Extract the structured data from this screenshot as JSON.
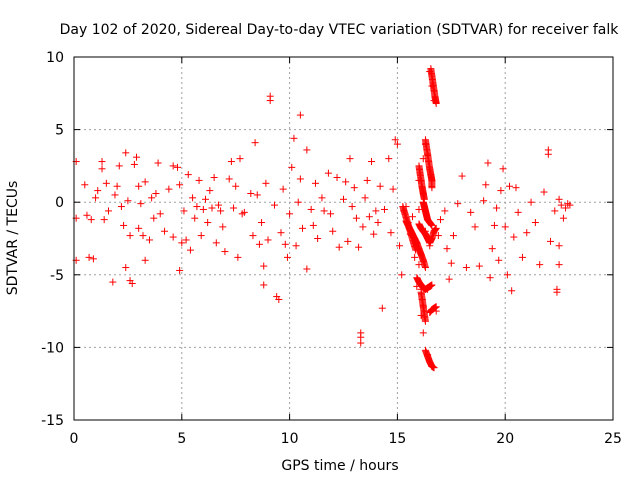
{
  "chart_data": {
    "type": "scatter",
    "title": "Day 102 of 2020, Sidereal Day-to-day VTEC variation (SDTVAR) for receiver falk",
    "xlabel": "GPS time / hours",
    "ylabel": "SDTVAR / TECUs",
    "xlim": [
      0,
      25
    ],
    "ylim": [
      -15,
      10
    ],
    "xticks": [
      0,
      5,
      10,
      15,
      20,
      25
    ],
    "yticks": [
      -15,
      -10,
      -5,
      0,
      5,
      10
    ],
    "grid": true,
    "marker": "plus",
    "color": "#ff0000",
    "series": [
      {
        "name": "SDTVAR",
        "points": [
          [
            0.1,
            2.8
          ],
          [
            0.1,
            -1.1
          ],
          [
            0.1,
            -4.0
          ],
          [
            0.5,
            1.2
          ],
          [
            0.6,
            -0.9
          ],
          [
            0.7,
            -3.8
          ],
          [
            0.8,
            -1.2
          ],
          [
            0.9,
            -3.9
          ],
          [
            1.0,
            0.3
          ],
          [
            1.1,
            0.8
          ],
          [
            1.3,
            2.8
          ],
          [
            1.3,
            2.3
          ],
          [
            1.4,
            -1.2
          ],
          [
            1.5,
            1.3
          ],
          [
            1.6,
            -0.6
          ],
          [
            1.8,
            -5.5
          ],
          [
            1.9,
            0.5
          ],
          [
            2.0,
            1.1
          ],
          [
            2.1,
            2.5
          ],
          [
            2.2,
            -0.3
          ],
          [
            2.3,
            -1.6
          ],
          [
            2.4,
            3.4
          ],
          [
            2.4,
            -4.5
          ],
          [
            2.5,
            0.1
          ],
          [
            2.6,
            -2.3
          ],
          [
            2.6,
            -5.4
          ],
          [
            2.7,
            -5.6
          ],
          [
            2.8,
            2.6
          ],
          [
            2.9,
            3.1
          ],
          [
            3.0,
            1.1
          ],
          [
            3.0,
            -1.8
          ],
          [
            3.1,
            -0.1
          ],
          [
            3.2,
            -2.3
          ],
          [
            3.3,
            1.4
          ],
          [
            3.3,
            -4.0
          ],
          [
            3.5,
            -2.6
          ],
          [
            3.6,
            0.3
          ],
          [
            3.7,
            -1.1
          ],
          [
            3.8,
            0.6
          ],
          [
            3.9,
            2.7
          ],
          [
            4.0,
            -0.8
          ],
          [
            4.2,
            -2.0
          ],
          [
            4.4,
            0.9
          ],
          [
            4.6,
            2.5
          ],
          [
            4.6,
            -2.4
          ],
          [
            4.8,
            2.4
          ],
          [
            4.9,
            -4.7
          ],
          [
            4.9,
            1.2
          ],
          [
            5.0,
            -2.8
          ],
          [
            5.1,
            -0.6
          ],
          [
            5.2,
            -2.6
          ],
          [
            5.3,
            1.9
          ],
          [
            5.4,
            -3.3
          ],
          [
            5.5,
            0.3
          ],
          [
            5.6,
            -1.1
          ],
          [
            5.7,
            -0.3
          ],
          [
            5.8,
            1.5
          ],
          [
            5.9,
            -2.3
          ],
          [
            6.0,
            -0.5
          ],
          [
            6.1,
            0.2
          ],
          [
            6.2,
            -1.4
          ],
          [
            6.3,
            0.8
          ],
          [
            6.4,
            -0.4
          ],
          [
            6.5,
            1.7
          ],
          [
            6.6,
            -2.8
          ],
          [
            6.7,
            -0.2
          ],
          [
            6.8,
            -0.6
          ],
          [
            6.9,
            -1.7
          ],
          [
            7.0,
            -3.4
          ],
          [
            7.2,
            1.6
          ],
          [
            7.3,
            2.8
          ],
          [
            7.4,
            -0.4
          ],
          [
            7.5,
            1.1
          ],
          [
            7.6,
            -3.8
          ],
          [
            7.7,
            3.0
          ],
          [
            7.8,
            -0.8
          ],
          [
            7.9,
            -0.7
          ],
          [
            8.2,
            0.6
          ],
          [
            8.3,
            -2.3
          ],
          [
            8.4,
            4.1
          ],
          [
            8.5,
            0.5
          ],
          [
            8.6,
            -2.9
          ],
          [
            8.7,
            -1.4
          ],
          [
            8.8,
            -4.4
          ],
          [
            8.8,
            -5.7
          ],
          [
            8.9,
            1.3
          ],
          [
            9.0,
            -2.6
          ],
          [
            9.1,
            7.0
          ],
          [
            9.1,
            7.3
          ],
          [
            9.3,
            -0.2
          ],
          [
            9.4,
            -6.5
          ],
          [
            9.5,
            -6.7
          ],
          [
            9.6,
            -2.1
          ],
          [
            9.7,
            0.9
          ],
          [
            9.8,
            -2.9
          ],
          [
            9.9,
            -3.8
          ],
          [
            10.0,
            -0.8
          ],
          [
            10.1,
            2.4
          ],
          [
            10.2,
            4.4
          ],
          [
            10.3,
            -3.0
          ],
          [
            10.4,
            0.0
          ],
          [
            10.5,
            6.0
          ],
          [
            10.5,
            1.6
          ],
          [
            10.6,
            -1.8
          ],
          [
            10.8,
            -4.6
          ],
          [
            10.8,
            3.6
          ],
          [
            11.0,
            -0.5
          ],
          [
            11.1,
            -1.6
          ],
          [
            11.2,
            1.3
          ],
          [
            11.3,
            -2.5
          ],
          [
            11.5,
            0.3
          ],
          [
            11.6,
            -0.6
          ],
          [
            11.8,
            2.0
          ],
          [
            11.9,
            -0.8
          ],
          [
            12.0,
            -2.0
          ],
          [
            12.2,
            1.7
          ],
          [
            12.3,
            -3.1
          ],
          [
            12.5,
            0.2
          ],
          [
            12.6,
            1.4
          ],
          [
            12.7,
            -2.7
          ],
          [
            12.8,
            3.0
          ],
          [
            12.9,
            -0.3
          ],
          [
            13.0,
            1.0
          ],
          [
            13.1,
            -1.1
          ],
          [
            13.2,
            -3.1
          ],
          [
            13.3,
            -9.0
          ],
          [
            13.3,
            -9.3
          ],
          [
            13.3,
            -9.7
          ],
          [
            13.4,
            -1.7
          ],
          [
            13.5,
            0.3
          ],
          [
            13.6,
            1.5
          ],
          [
            13.7,
            -1.0
          ],
          [
            13.8,
            2.8
          ],
          [
            13.9,
            -2.2
          ],
          [
            14.0,
            -0.6
          ],
          [
            14.1,
            -1.4
          ],
          [
            14.2,
            1.1
          ],
          [
            14.3,
            -7.3
          ],
          [
            14.4,
            -0.5
          ],
          [
            14.6,
            3.0
          ],
          [
            14.7,
            -2.1
          ],
          [
            14.8,
            0.9
          ],
          [
            14.9,
            4.3
          ],
          [
            15.0,
            4.0
          ],
          [
            15.1,
            -3.0
          ],
          [
            15.2,
            -5.0
          ],
          [
            15.3,
            -0.6
          ],
          [
            15.4,
            -0.3
          ],
          [
            15.5,
            -1.4
          ],
          [
            15.6,
            -2.2
          ],
          [
            15.7,
            -1.0
          ],
          [
            15.8,
            -3.8
          ],
          [
            15.9,
            -5.8
          ],
          [
            16.0,
            1.5
          ],
          [
            16.0,
            -0.5
          ],
          [
            16.0,
            -4.3
          ],
          [
            16.1,
            -6.0
          ],
          [
            16.1,
            -7.8
          ],
          [
            16.2,
            3.0
          ],
          [
            16.2,
            -9.0
          ],
          [
            16.3,
            4.0
          ],
          [
            16.3,
            -2.0
          ],
          [
            16.4,
            -10.5
          ],
          [
            16.4,
            -6.0
          ],
          [
            16.5,
            -3.0
          ],
          [
            16.5,
            9.0
          ],
          [
            16.6,
            8.0
          ],
          [
            16.6,
            -11.3
          ],
          [
            16.7,
            7.0
          ],
          [
            16.8,
            -7.5
          ],
          [
            16.9,
            -2.3
          ],
          [
            17.0,
            -1.2
          ],
          [
            17.2,
            -0.6
          ],
          [
            17.3,
            -3.2
          ],
          [
            17.4,
            -5.3
          ],
          [
            17.5,
            -4.2
          ],
          [
            17.6,
            -2.3
          ],
          [
            17.8,
            -0.1
          ],
          [
            18.0,
            1.8
          ],
          [
            18.2,
            -4.5
          ],
          [
            18.4,
            -0.7
          ],
          [
            18.6,
            -1.7
          ],
          [
            18.8,
            -4.4
          ],
          [
            19.0,
            0.1
          ],
          [
            19.1,
            1.2
          ],
          [
            19.2,
            2.7
          ],
          [
            19.3,
            -5.2
          ],
          [
            19.4,
            -3.2
          ],
          [
            19.5,
            -1.6
          ],
          [
            19.6,
            -0.4
          ],
          [
            19.7,
            -4.0
          ],
          [
            19.8,
            0.8
          ],
          [
            19.9,
            2.3
          ],
          [
            20.0,
            -1.7
          ],
          [
            20.1,
            -5.0
          ],
          [
            20.2,
            1.1
          ],
          [
            20.3,
            -6.1
          ],
          [
            20.4,
            -2.4
          ],
          [
            20.5,
            1.0
          ],
          [
            20.6,
            -0.7
          ],
          [
            20.8,
            -3.8
          ],
          [
            21.0,
            -2.1
          ],
          [
            21.2,
            0.0
          ],
          [
            21.4,
            -1.4
          ],
          [
            21.6,
            -4.3
          ],
          [
            21.8,
            0.7
          ],
          [
            22.0,
            3.3
          ],
          [
            22.0,
            3.6
          ],
          [
            22.1,
            -2.7
          ],
          [
            22.3,
            -0.6
          ],
          [
            22.4,
            -6.0
          ],
          [
            22.4,
            -6.2
          ],
          [
            22.5,
            -3.0
          ],
          [
            22.5,
            -4.3
          ],
          [
            22.5,
            0.2
          ],
          [
            22.6,
            -0.2
          ],
          [
            22.7,
            -1.1
          ],
          [
            22.8,
            -0.4
          ],
          [
            22.9,
            -0.1
          ],
          [
            23.0,
            -0.2
          ]
        ]
      }
    ],
    "dense_arcs": [
      [
        [
          15.25,
          -0.3
        ],
        [
          15.35,
          -0.8
        ],
        [
          15.45,
          -1.3
        ],
        [
          15.55,
          -1.8
        ],
        [
          15.65,
          -2.3
        ],
        [
          15.75,
          -2.8
        ],
        [
          15.85,
          -3.3
        ]
      ],
      [
        [
          15.4,
          -1.3
        ],
        [
          15.5,
          -1.6
        ],
        [
          15.6,
          -1.9
        ],
        [
          15.7,
          -2.2
        ],
        [
          15.8,
          -2.5
        ],
        [
          15.9,
          -2.8
        ],
        [
          16.0,
          -3.2
        ],
        [
          16.1,
          -3.6
        ],
        [
          16.2,
          -4.0
        ],
        [
          16.3,
          -4.5
        ]
      ],
      [
        [
          15.9,
          -5.2
        ],
        [
          16.0,
          -5.5
        ],
        [
          16.1,
          -5.7
        ],
        [
          16.2,
          -5.9
        ],
        [
          16.3,
          -6.0
        ],
        [
          16.4,
          -5.9
        ],
        [
          16.5,
          -5.8
        ],
        [
          16.6,
          -5.7
        ]
      ],
      [
        [
          16.0,
          -1.5
        ],
        [
          16.1,
          -1.8
        ],
        [
          16.2,
          -2.0
        ],
        [
          16.3,
          -2.2
        ],
        [
          16.4,
          -2.5
        ],
        [
          16.5,
          -2.8
        ],
        [
          16.6,
          -2.5
        ],
        [
          16.7,
          -2.0
        ],
        [
          16.8,
          -1.8
        ]
      ],
      [
        [
          16.2,
          0.0
        ],
        [
          16.25,
          -0.3
        ],
        [
          16.3,
          -0.6
        ],
        [
          16.35,
          -0.9
        ],
        [
          16.4,
          -1.2
        ],
        [
          16.5,
          -1.4
        ],
        [
          16.6,
          -1.6
        ]
      ],
      [
        [
          16.0,
          2.5
        ],
        [
          16.05,
          2.0
        ],
        [
          16.1,
          1.5
        ],
        [
          16.15,
          1.0
        ],
        [
          16.2,
          0.6
        ],
        [
          16.25,
          0.2
        ]
      ],
      [
        [
          16.3,
          4.3
        ],
        [
          16.35,
          3.8
        ],
        [
          16.4,
          3.3
        ],
        [
          16.45,
          2.8
        ],
        [
          16.5,
          2.3
        ],
        [
          16.55,
          1.9
        ],
        [
          16.6,
          1.5
        ],
        [
          16.6,
          1.0
        ]
      ],
      [
        [
          16.1,
          -6.2
        ],
        [
          16.15,
          -6.7
        ],
        [
          16.2,
          -7.2
        ],
        [
          16.25,
          -7.7
        ],
        [
          16.3,
          -8.2
        ]
      ],
      [
        [
          16.5,
          -7.6
        ],
        [
          16.6,
          -7.4
        ],
        [
          16.7,
          -7.3
        ],
        [
          16.8,
          -7.2
        ]
      ],
      [
        [
          16.3,
          -10.2
        ],
        [
          16.4,
          -10.6
        ],
        [
          16.5,
          -11.0
        ],
        [
          16.6,
          -11.3
        ],
        [
          16.7,
          -11.4
        ]
      ],
      [
        [
          16.55,
          9.2
        ],
        [
          16.6,
          8.7
        ],
        [
          16.65,
          8.2
        ],
        [
          16.7,
          7.7
        ],
        [
          16.75,
          7.2
        ],
        [
          16.8,
          6.8
        ]
      ]
    ]
  }
}
